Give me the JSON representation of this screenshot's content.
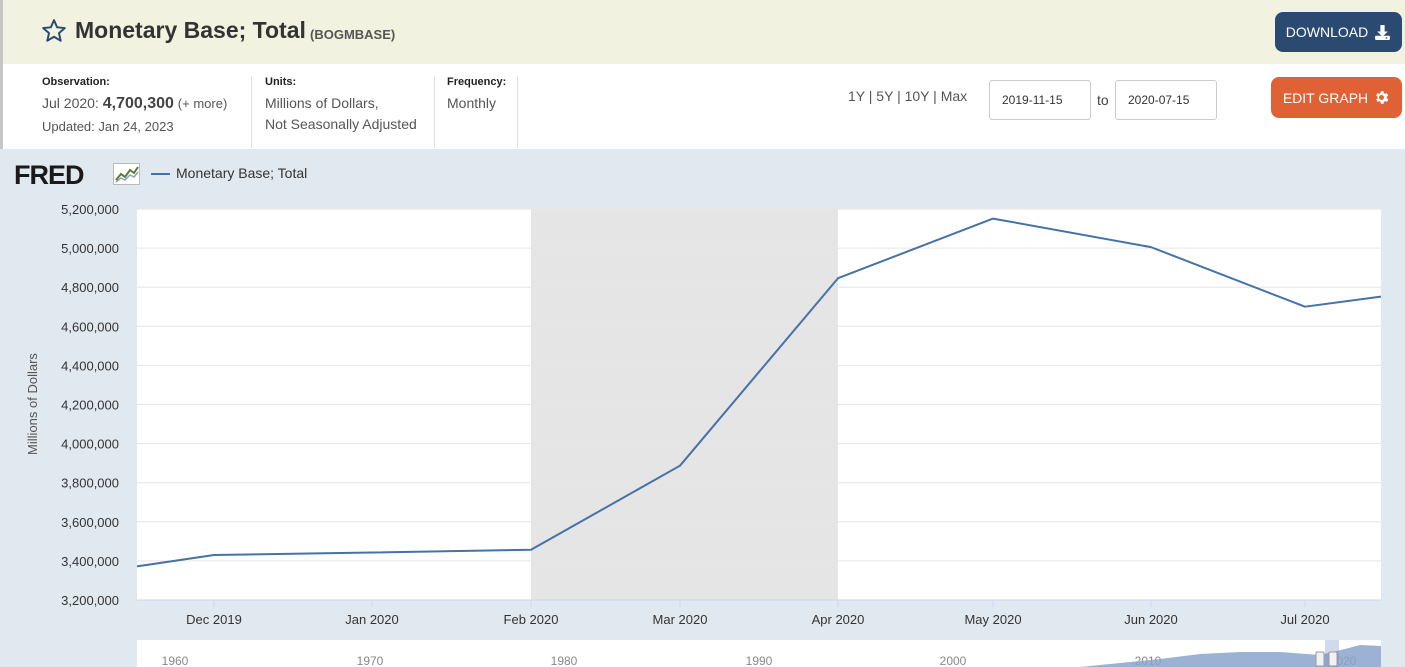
{
  "header": {
    "title": "Monetary Base; Total",
    "series_id": "(BOGMBASE)",
    "download_label": "DOWNLOAD",
    "star_icon": "star-outline-icon",
    "download_icon": "download-icon"
  },
  "meta": {
    "observation_label": "Observation:",
    "observation_date": "Jul 2020:",
    "observation_value": "4,700,300",
    "observation_more": "(+ more)",
    "updated": "Updated: Jan 24, 2023",
    "units_label": "Units:",
    "units_line1": "Millions of Dollars,",
    "units_line2": "Not Seasonally Adjusted",
    "frequency_label": "Frequency:",
    "frequency_value": "Monthly"
  },
  "range": {
    "options": [
      "1Y",
      "5Y",
      "10Y",
      "Max"
    ],
    "from": "2019-11-15",
    "to_label": "to",
    "to": "2020-07-15",
    "edit_label": "EDIT GRAPH",
    "edit_icon": "gear-icon"
  },
  "chart": {
    "logo_text": "FRED",
    "legend_label": "Monetary Base; Total",
    "series_color": "#4572a7",
    "recession_color": "#e5e5e5"
  },
  "chart_data": {
    "type": "line",
    "ylabel": "Millions of Dollars",
    "ylim": [
      3200000,
      5200000
    ],
    "yticks": [
      "3,200,000",
      "3,400,000",
      "3,600,000",
      "3,800,000",
      "4,000,000",
      "4,200,000",
      "4,400,000",
      "4,600,000",
      "4,800,000",
      "5,000,000",
      "5,200,000"
    ],
    "xticks": [
      "Dec 2019",
      "Jan 2020",
      "Feb 2020",
      "Mar 2020",
      "Apr 2020",
      "May 2020",
      "Jun 2020",
      "Jul 2020"
    ],
    "x": [
      "2019-11-15",
      "2019-12",
      "2020-01",
      "2020-02",
      "2020-03",
      "2020-04",
      "2020-05",
      "2020-06",
      "2020-07",
      "2020-07-15"
    ],
    "series": [
      {
        "name": "Monetary Base; Total",
        "values": [
          3372000,
          3430000,
          3443000,
          3457000,
          3887000,
          4846000,
          5151000,
          5005000,
          4700300,
          4752000
        ]
      }
    ],
    "recession": {
      "start": "2020-02",
      "end": "2020-04"
    },
    "grid": true,
    "legend": "top-left",
    "navigator_ticks": [
      "1960",
      "1970",
      "1980",
      "1990",
      "2000",
      "2010",
      "2020"
    ]
  }
}
